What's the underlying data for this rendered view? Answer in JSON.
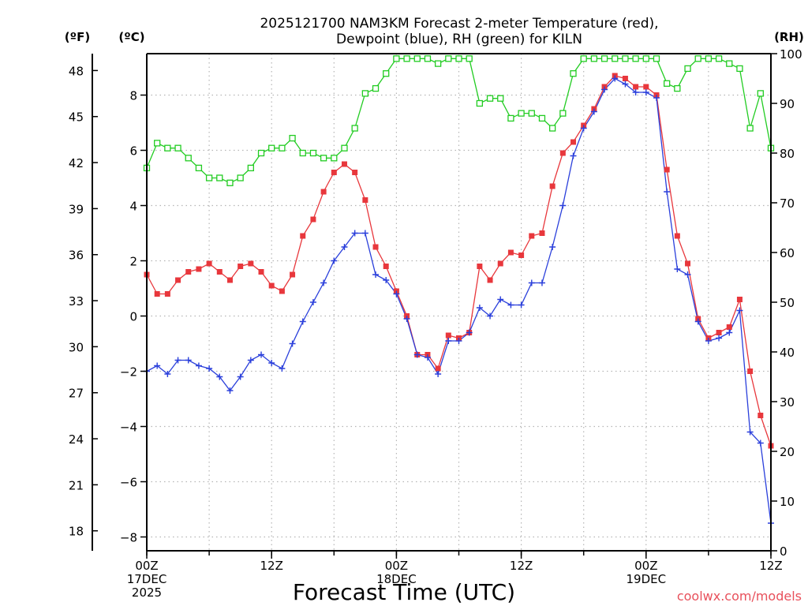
{
  "chart_data": {
    "type": "line",
    "title_lines": [
      "2025121700 NAM3KM Forecast 2-meter Temperature (red),",
      "Dewpoint (blue), RH (green) for KILN"
    ],
    "xlabel": "Forecast Time (UTC)",
    "credit": "coolwx.com/models",
    "units": {
      "fahrenheit": "(ºF)",
      "celsius": "(ºC)",
      "rh": "(RH)"
    },
    "x_range_hours": [
      0,
      60
    ],
    "y_celsius_range": [
      -8.5,
      9.5
    ],
    "y_rh_range": [
      0,
      100
    ],
    "y_celsius_ticks": [
      -8,
      -6,
      -4,
      -2,
      0,
      2,
      4,
      6,
      8
    ],
    "y_celsius_tick_labels": [
      "−8",
      "−6",
      "−4",
      "−2",
      "0",
      "2",
      "4",
      "6",
      "8"
    ],
    "y_fahrenheit_ticks": [
      18,
      21,
      24,
      27,
      30,
      33,
      36,
      39,
      42,
      45,
      48
    ],
    "y_fahrenheit_tick_labels": [
      "18",
      "21",
      "24",
      "27",
      "30",
      "33",
      "36",
      "39",
      "42",
      "45",
      "48"
    ],
    "y_rh_ticks": [
      0,
      10,
      20,
      30,
      40,
      50,
      60,
      70,
      80,
      90,
      100
    ],
    "y_rh_tick_labels": [
      "0",
      "10",
      "20",
      "30",
      "40",
      "50",
      "60",
      "70",
      "80",
      "90",
      "100"
    ],
    "x_ticks": [
      {
        "hour": 0,
        "lines": [
          "00Z",
          "17DEC",
          "2025"
        ]
      },
      {
        "hour": 12,
        "lines": [
          "12Z"
        ]
      },
      {
        "hour": 24,
        "lines": [
          "00Z",
          "18DEC"
        ]
      },
      {
        "hour": 36,
        "lines": [
          "12Z"
        ]
      },
      {
        "hour": 48,
        "lines": [
          "00Z",
          "19DEC"
        ]
      },
      {
        "hour": 60,
        "lines": [
          "12Z"
        ]
      }
    ],
    "x_hours": [
      0,
      1,
      2,
      3,
      4,
      5,
      6,
      7,
      8,
      9,
      10,
      11,
      12,
      13,
      14,
      15,
      16,
      17,
      18,
      19,
      20,
      21,
      22,
      23,
      24,
      25,
      26,
      27,
      28,
      29,
      30,
      31,
      32,
      33,
      34,
      35,
      36,
      37,
      38,
      39,
      40,
      41,
      42,
      43,
      44,
      45,
      46,
      47,
      48,
      49,
      50,
      51,
      52,
      53,
      54,
      55,
      56,
      57,
      58,
      59,
      60
    ],
    "series": [
      {
        "name": "2-meter Temperature",
        "unit": "C",
        "color": "#e8373c",
        "marker": "filled-square",
        "values": [
          1.5,
          0.8,
          0.8,
          1.3,
          1.6,
          1.7,
          1.9,
          1.6,
          1.3,
          1.8,
          1.9,
          1.6,
          1.1,
          0.9,
          1.5,
          2.9,
          3.5,
          4.5,
          5.2,
          5.5,
          5.2,
          4.2,
          2.5,
          1.8,
          0.9,
          0.0,
          -1.4,
          -1.4,
          -1.9,
          -0.7,
          -0.8,
          -0.6,
          1.8,
          1.3,
          1.9,
          2.3,
          2.2,
          2.9,
          3.0,
          4.7,
          5.9,
          6.3,
          6.9,
          7.5,
          8.3,
          8.7,
          8.6,
          8.3,
          8.3,
          8.0,
          5.3,
          2.9,
          1.9,
          -0.1,
          -0.8,
          -0.6,
          -0.4,
          0.6,
          -2.0,
          -3.6,
          -4.7
        ]
      },
      {
        "name": "Dewpoint",
        "unit": "C",
        "color": "#2a3fdb",
        "marker": "plus",
        "values": [
          -2.0,
          -1.8,
          -2.1,
          -1.6,
          -1.6,
          -1.8,
          -1.9,
          -2.2,
          -2.7,
          -2.2,
          -1.6,
          -1.4,
          -1.7,
          -1.9,
          -1.0,
          -0.2,
          0.5,
          1.2,
          2.0,
          2.5,
          3.0,
          3.0,
          1.5,
          1.3,
          0.8,
          -0.1,
          -1.4,
          -1.5,
          -2.1,
          -0.9,
          -0.9,
          -0.6,
          0.3,
          0.0,
          0.6,
          0.4,
          0.4,
          1.2,
          1.2,
          2.5,
          4.0,
          5.8,
          6.8,
          7.4,
          8.2,
          8.6,
          8.4,
          8.1,
          8.1,
          7.9,
          4.5,
          1.7,
          1.5,
          -0.2,
          -0.9,
          -0.8,
          -0.6,
          0.2,
          -4.2,
          -4.6,
          -7.5
        ]
      },
      {
        "name": "Relative Humidity",
        "unit": "%",
        "color": "#22cc22",
        "marker": "open-square",
        "values": [
          77,
          82,
          81,
          81,
          79,
          77,
          75,
          75,
          74,
          75,
          77,
          80,
          81,
          81,
          83,
          80,
          80,
          79,
          79,
          81,
          85,
          92,
          93,
          96,
          99,
          99,
          99,
          99,
          98,
          99,
          99,
          99,
          90,
          91,
          91,
          87,
          88,
          88,
          87,
          85,
          88,
          96,
          99,
          99,
          99,
          99,
          99,
          99,
          99,
          99,
          94,
          93,
          97,
          99,
          99,
          99,
          98,
          97,
          85,
          92,
          81
        ]
      }
    ]
  }
}
